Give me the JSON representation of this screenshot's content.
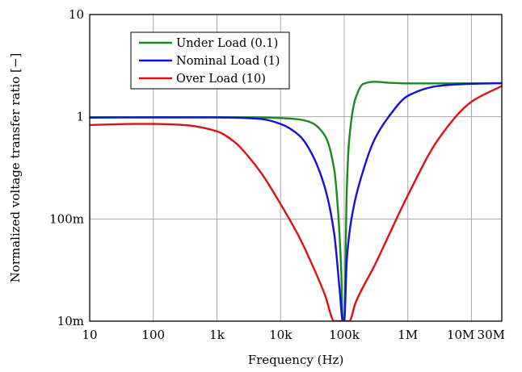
{
  "chart_data": {
    "type": "line",
    "title": "",
    "xlabel": "Frequency (Hz)",
    "ylabel": "Normalized voltage transfer ratio [−]",
    "x_scale": "log",
    "y_scale": "log",
    "xlim": [
      10,
      30000000
    ],
    "ylim": [
      0.01,
      10
    ],
    "grid": true,
    "legend_position": "top-left",
    "x_ticks": [
      {
        "value": 10,
        "label": "10"
      },
      {
        "value": 100,
        "label": "100"
      },
      {
        "value": 1000,
        "label": "1k"
      },
      {
        "value": 10000,
        "label": "10k"
      },
      {
        "value": 100000,
        "label": "100k"
      },
      {
        "value": 1000000,
        "label": "1M"
      },
      {
        "value": 10000000,
        "label": "10M"
      },
      {
        "value": 30000000,
        "label": "30M"
      }
    ],
    "y_ticks": [
      {
        "value": 0.01,
        "label": "10m"
      },
      {
        "value": 0.1,
        "label": "100m"
      },
      {
        "value": 1,
        "label": "1"
      },
      {
        "value": 10,
        "label": "10"
      }
    ],
    "series": [
      {
        "name": "Under Load (0.1)",
        "color": "#1a8a1a",
        "points": [
          [
            10,
            0.99
          ],
          [
            100,
            0.99
          ],
          [
            1000,
            0.99
          ],
          [
            5000,
            0.985
          ],
          [
            10000,
            0.97
          ],
          [
            20000,
            0.94
          ],
          [
            30000,
            0.88
          ],
          [
            50000,
            0.65
          ],
          [
            70000,
            0.3
          ],
          [
            80000,
            0.12
          ],
          [
            90000,
            0.03
          ],
          [
            95000,
            0.01
          ],
          [
            100000,
            0.01
          ],
          [
            110000,
            0.2
          ],
          [
            120000,
            0.6
          ],
          [
            150000,
            1.5
          ],
          [
            200000,
            2.1
          ],
          [
            300000,
            2.2
          ],
          [
            500000,
            2.15
          ],
          [
            1000000,
            2.12
          ],
          [
            3000000,
            2.12
          ],
          [
            10000000,
            2.12
          ],
          [
            30000000,
            2.13
          ]
        ]
      },
      {
        "name": "Nominal Load (1)",
        "color": "#1010e0",
        "points": [
          [
            10,
            0.98
          ],
          [
            100,
            0.985
          ],
          [
            1000,
            0.985
          ],
          [
            2000,
            0.98
          ],
          [
            5000,
            0.95
          ],
          [
            10000,
            0.85
          ],
          [
            20000,
            0.65
          ],
          [
            30000,
            0.45
          ],
          [
            50000,
            0.2
          ],
          [
            70000,
            0.07
          ],
          [
            85000,
            0.02
          ],
          [
            95000,
            0.01
          ],
          [
            100000,
            0.01
          ],
          [
            110000,
            0.04
          ],
          [
            130000,
            0.1
          ],
          [
            200000,
            0.3
          ],
          [
            300000,
            0.6
          ],
          [
            500000,
            1.0
          ],
          [
            1000000,
            1.6
          ],
          [
            3000000,
            2.0
          ],
          [
            10000000,
            2.1
          ],
          [
            30000000,
            2.13
          ]
        ]
      },
      {
        "name": "Over Load (10)",
        "color": "#e01010",
        "points": [
          [
            10,
            0.83
          ],
          [
            50,
            0.85
          ],
          [
            100,
            0.85
          ],
          [
            300,
            0.83
          ],
          [
            1000,
            0.72
          ],
          [
            2000,
            0.55
          ],
          [
            3000,
            0.42
          ],
          [
            5000,
            0.28
          ],
          [
            10000,
            0.14
          ],
          [
            20000,
            0.065
          ],
          [
            30000,
            0.038
          ],
          [
            50000,
            0.018
          ],
          [
            70000,
            0.01
          ],
          [
            120000,
            0.01
          ],
          [
            150000,
            0.015
          ],
          [
            300000,
            0.035
          ],
          [
            1000000,
            0.17
          ],
          [
            3000000,
            0.6
          ],
          [
            10000000,
            1.4
          ],
          [
            30000000,
            2.0
          ]
        ]
      }
    ]
  }
}
